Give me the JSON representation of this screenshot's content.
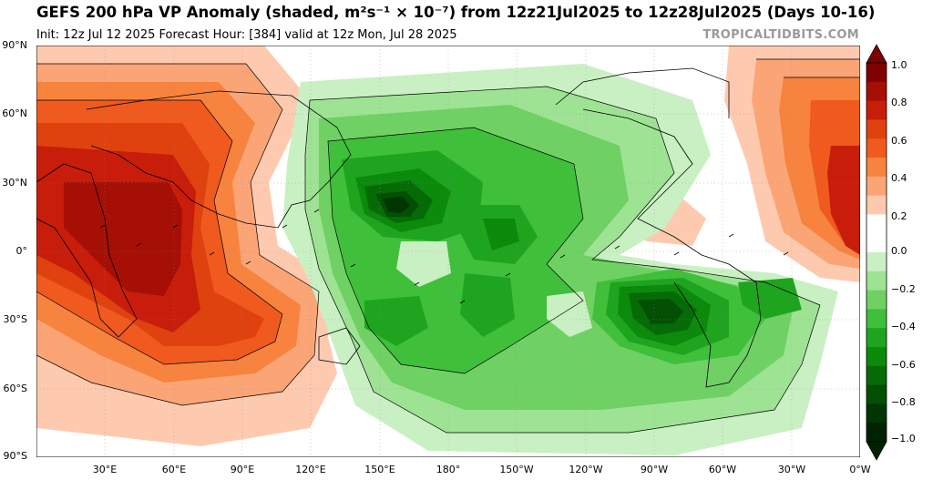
{
  "header": {
    "title": "GEFS 200 hPa VP Anomaly (shaded, m²s⁻¹ × 10⁻⁷) from 12z21Jul2025 to 12z28Jul2025 (Days 10-16)",
    "subtitle": "Init: 12z Jul 12 2025   Forecast Hour: [384]   valid at 12z Mon, Jul 28 2025",
    "credit": "TROPICALTIDBITS.COM"
  },
  "colorbar": {
    "ticks": [
      "1.0",
      "0.8",
      "0.6",
      "0.4",
      "0.2",
      "0.0",
      "−0.2",
      "−0.4",
      "−0.6",
      "−0.8",
      "−1.0"
    ],
    "colors": [
      "#7f0000",
      "#a50f05",
      "#c81d0a",
      "#e0420f",
      "#f05a1e",
      "#f7833f",
      "#fba576",
      "#fdcab0",
      "#ffffff",
      "#ffffff",
      "#c9f0c3",
      "#9ee394",
      "#6fd163",
      "#3fbf3a",
      "#1fa41f",
      "#0b8a0b",
      "#066b06",
      "#034f03",
      "#013501",
      "#002200"
    ]
  },
  "axes": {
    "lat_labels": [
      "90°N",
      "60°N",
      "30°N",
      "0°",
      "30°S",
      "60°S",
      "90°S"
    ],
    "lon_labels": [
      "30°E",
      "60°E",
      "90°E",
      "120°E",
      "150°E",
      "180°",
      "150°W",
      "120°W",
      "90°W",
      "60°W",
      "30°W",
      "0°W"
    ]
  }
}
